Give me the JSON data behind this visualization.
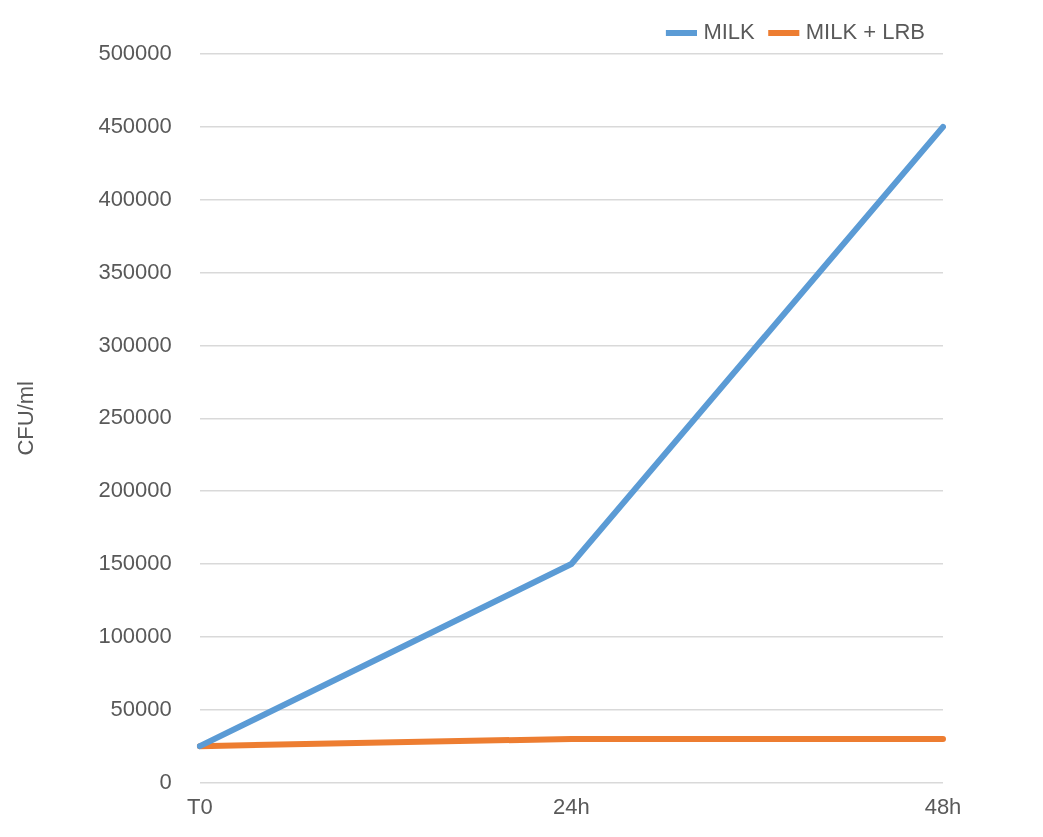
{
  "chart_data": {
    "type": "line",
    "ylabel": "CFU/ml",
    "categories": [
      "T0",
      "24h",
      "48h"
    ],
    "series": [
      {
        "name": "MILK",
        "color": "#5b9bd5",
        "values": [
          25000,
          150000,
          450000
        ]
      },
      {
        "name": "MILK + LRB",
        "color": "#ed7d31",
        "values": [
          25000,
          30000,
          30000
        ]
      }
    ],
    "ylim": [
      0,
      500000
    ],
    "yticks": [
      0,
      50000,
      100000,
      150000,
      200000,
      250000,
      300000,
      350000,
      400000,
      450000,
      500000
    ],
    "grid": "y",
    "legend": "top right",
    "marker": "none",
    "line_style": "solid"
  }
}
